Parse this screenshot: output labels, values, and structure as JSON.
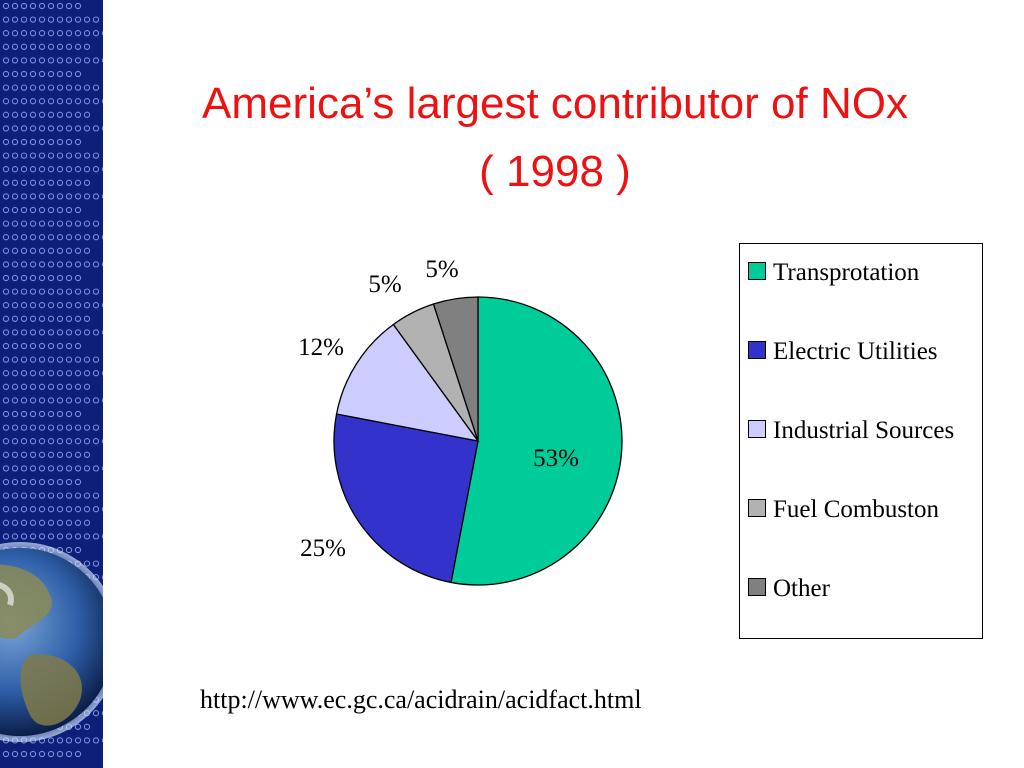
{
  "slide": {
    "title_line1": "America’s largest contributor of NOx",
    "title_line2": "( 1998 )",
    "source_url": "http://www.ec.gc.ca/acidrain/acidfact.html",
    "title_color": "#ee1111",
    "sidebar_color": "#0d1f78"
  },
  "chart_data": {
    "type": "pie",
    "slices": [
      {
        "label": "Transprotation",
        "value": 53,
        "display": "53%",
        "color": "#00cc99"
      },
      {
        "label": "Electric Utilities",
        "value": 25,
        "display": "25%",
        "color": "#3333cc"
      },
      {
        "label": "Industrial Sources",
        "value": 12,
        "display": "12%",
        "color": "#ccccff"
      },
      {
        "label": "Fuel Combuston",
        "value": 5,
        "display": "5%",
        "color": "#b2b2b2"
      },
      {
        "label": "Other",
        "value": 5,
        "display": "5%",
        "color": "#808080"
      }
    ],
    "legend": {
      "position": "right",
      "items": [
        "Transprotation",
        "Electric Utilities",
        "Industrial Sources",
        "Fuel Combuston",
        "Other"
      ]
    }
  }
}
